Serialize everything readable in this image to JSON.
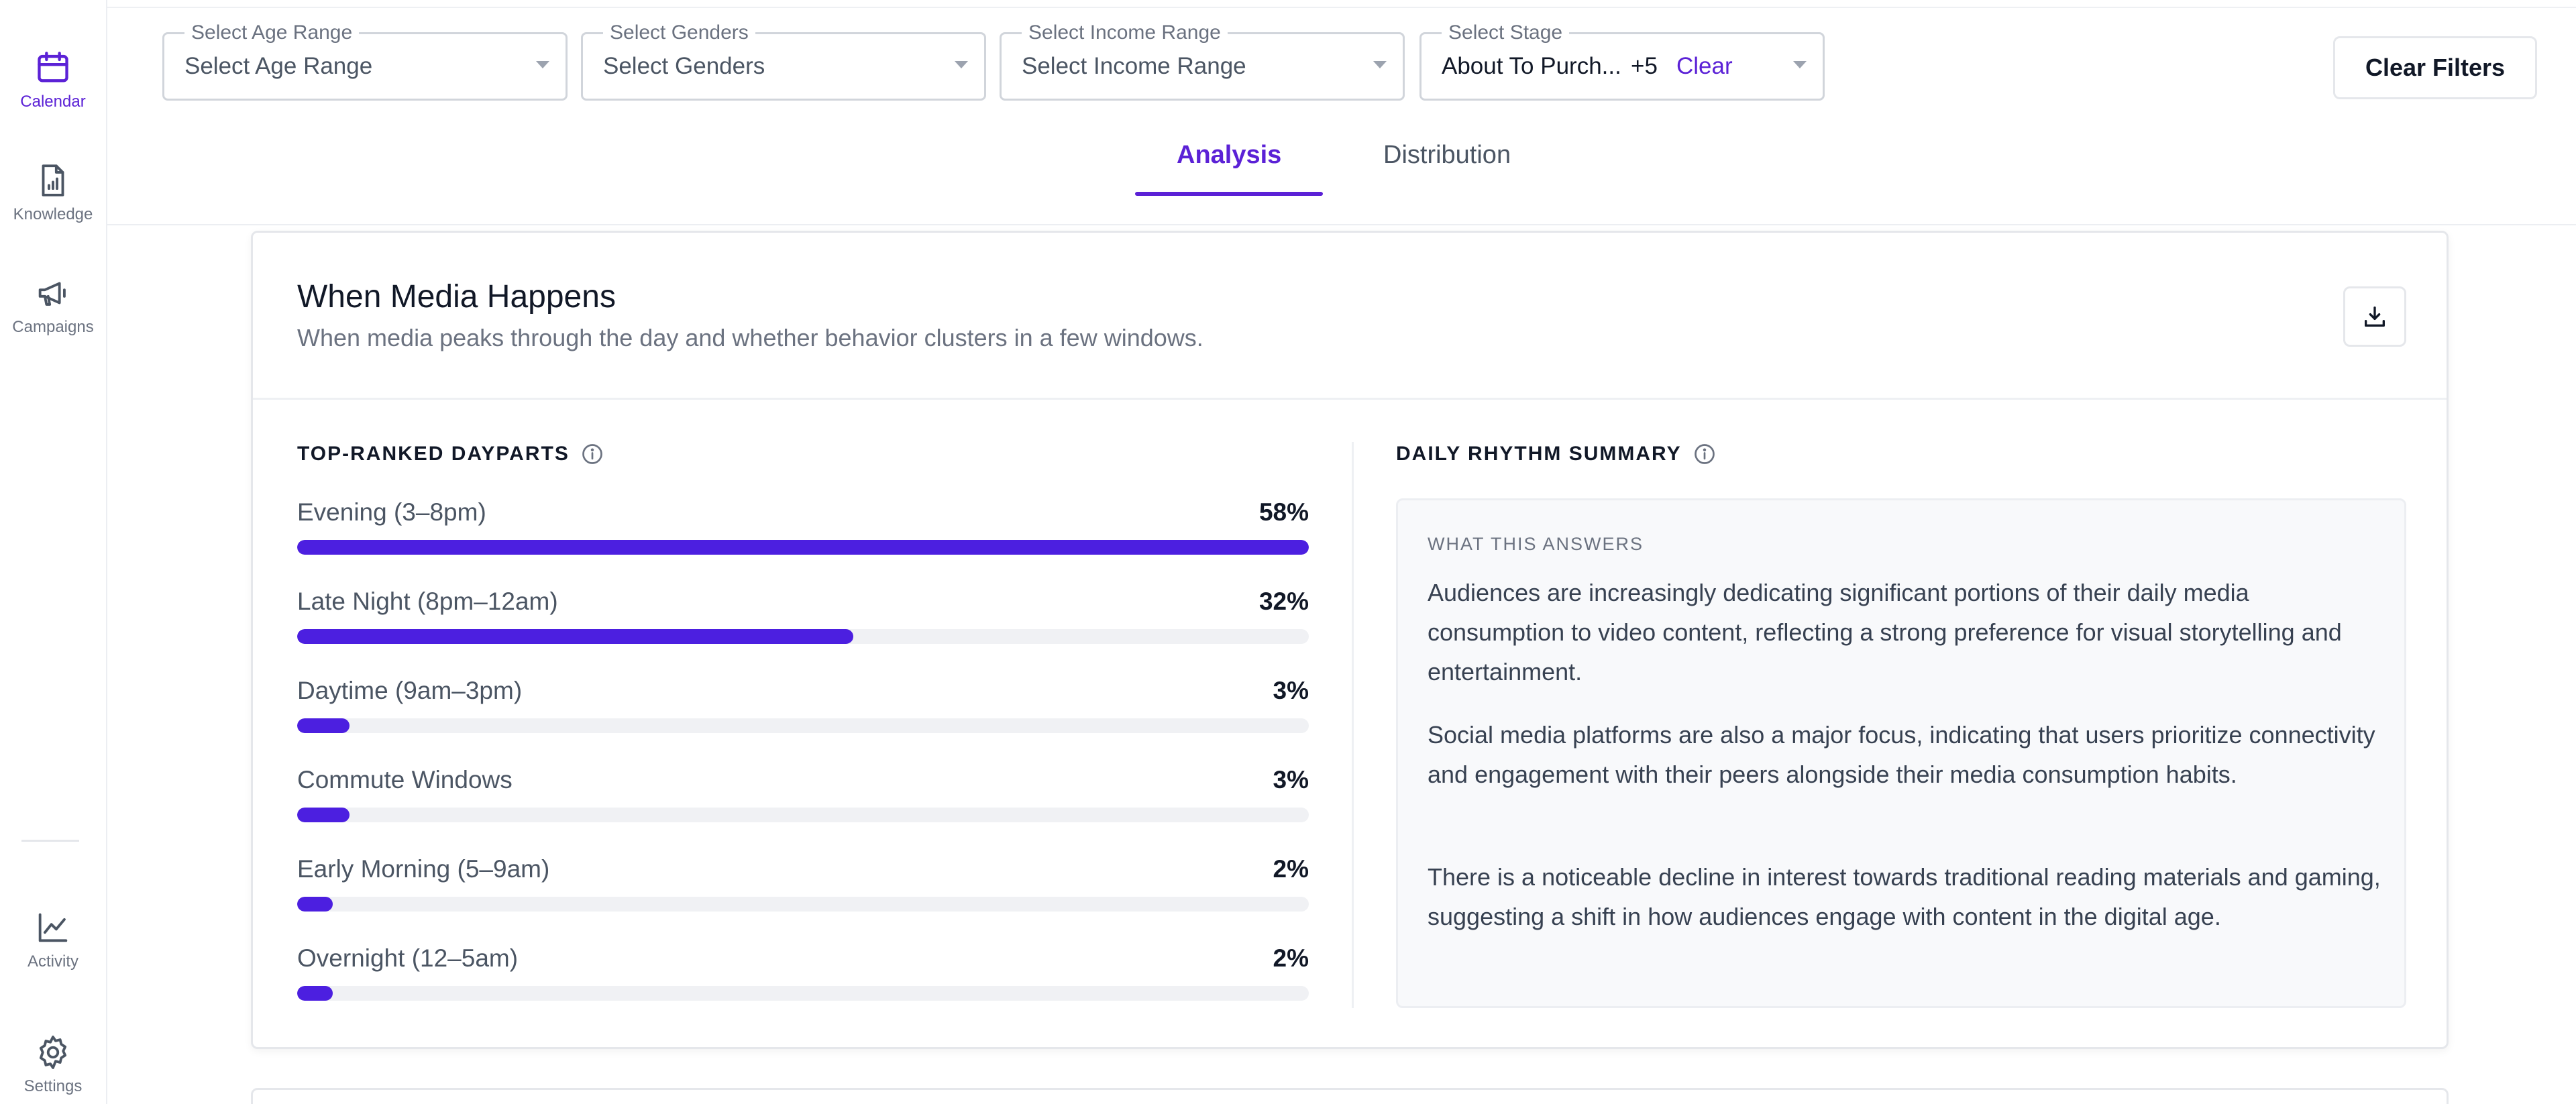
{
  "sidebar": {
    "items": [
      {
        "label": "Calendar",
        "icon": "calendar-icon",
        "active": true
      },
      {
        "label": "Knowledge",
        "icon": "document-chart-icon",
        "active": false
      },
      {
        "label": "Campaigns",
        "icon": "megaphone-icon",
        "active": false
      },
      {
        "label": "Activity",
        "icon": "line-chart-icon",
        "active": false
      },
      {
        "label": "Settings",
        "icon": "gear-icon",
        "active": false
      }
    ]
  },
  "filters": {
    "age": {
      "legend": "Select Age Range",
      "value": "Select Age Range"
    },
    "genders": {
      "legend": "Select Genders",
      "value": "Select Genders"
    },
    "income": {
      "legend": "Select Income Range",
      "value": "Select Income Range"
    },
    "stage": {
      "legend": "Select Stage",
      "value": "About To Purch...",
      "extra": "+5",
      "clear": "Clear"
    },
    "clear_all": "Clear Filters"
  },
  "tabs": [
    {
      "label": "Analysis",
      "active": true
    },
    {
      "label": "Distribution",
      "active": false
    }
  ],
  "card": {
    "title": "When Media Happens",
    "subtitle": "When media peaks through the day and whether behavior clusters in a few windows.",
    "dayparts": {
      "heading": "TOP-RANKED DAYPARTS",
      "rows": [
        {
          "name": "Evening (3–8pm)",
          "pct_label": "58%",
          "fill": 1.0
        },
        {
          "name": "Late Night (8pm–12am)",
          "pct_label": "32%",
          "fill": 0.55
        },
        {
          "name": "Daytime (9am–3pm)",
          "pct_label": "3%",
          "fill": 0.052
        },
        {
          "name": "Commute Windows",
          "pct_label": "3%",
          "fill": 0.052
        },
        {
          "name": "Early Morning (5–9am)",
          "pct_label": "2%",
          "fill": 0.035
        },
        {
          "name": "Overnight (12–5am)",
          "pct_label": "2%",
          "fill": 0.035
        }
      ]
    },
    "summary": {
      "heading": "DAILY RHYTHM SUMMARY",
      "label": "WHAT THIS ANSWERS",
      "paragraphs": [
        "Audiences are increasingly dedicating significant portions of their daily media consumption to video content, reflecting a strong preference for visual storytelling and entertainment.",
        "Social media platforms are also a major focus, indicating that users prioritize connectivity and engagement with their peers alongside their media consumption habits.",
        "There is a noticeable decline in interest towards traditional reading materials and gaming, suggesting a shift in how audiences engage with content in the digital age."
      ]
    }
  },
  "colors": {
    "accent": "#5b21d6",
    "bar_fill": "#4c1fe0",
    "track": "#f0f1f4"
  }
}
